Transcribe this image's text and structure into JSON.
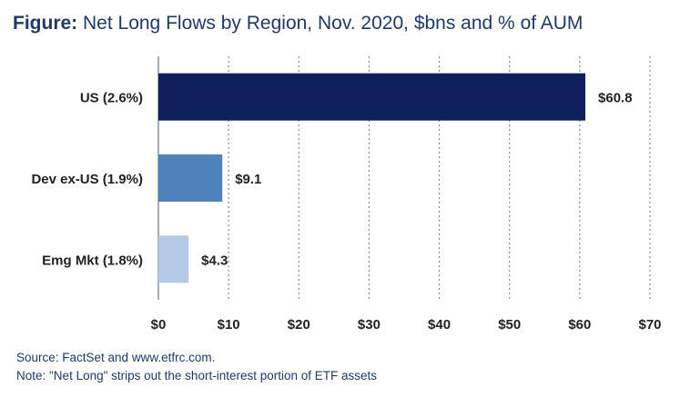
{
  "title_lead": "Figure:",
  "title_rest": " Net Long Flows by Region, Nov. 2020, $bns and % of AUM",
  "footer": {
    "source": "Source: FactSet and www.etfrc.com.",
    "note": "Note: \"Net Long\" strips out the short-interest portion of ETF assets"
  },
  "chart_data": {
    "type": "bar",
    "orientation": "horizontal",
    "categories": [
      "US (2.6%)",
      "Dev ex-US (1.9%)",
      "Emg Mkt (1.8%)"
    ],
    "values": [
      60.8,
      9.1,
      4.3
    ],
    "data_labels": [
      "$60.8",
      "$9.1",
      "$4.3"
    ],
    "bar_colors": [
      "#0d1f5c",
      "#4f81bd",
      "#b4c9e6"
    ],
    "xlim": [
      0,
      70
    ],
    "xticks": [
      0,
      10,
      20,
      30,
      40,
      50,
      60,
      70
    ],
    "xtick_labels": [
      "$0",
      "$10",
      "$20",
      "$30",
      "$40",
      "$50",
      "$60",
      "$70"
    ],
    "grid": "vertical-dotted",
    "title": "Net Long Flows by Region, Nov. 2020, $bns and % of AUM",
    "xlabel": "",
    "ylabel": ""
  }
}
